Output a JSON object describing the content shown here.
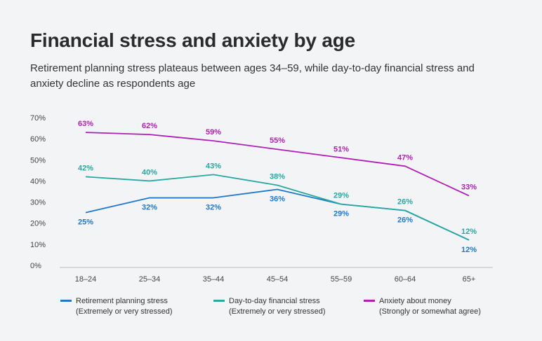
{
  "header": {
    "title": "Financial stress and anxiety by age",
    "subtitle": "Retirement planning stress plateaus between ages 34–59, while day-to-day financial stress and anxiety decline as respondents age"
  },
  "chart_data": {
    "type": "line",
    "categories": [
      "18–24",
      "25–34",
      "35–44",
      "45–54",
      "55–59",
      "60–64",
      "65+"
    ],
    "ylim": [
      0,
      70
    ],
    "yticks": [
      "0%",
      "10%",
      "20%",
      "30%",
      "40%",
      "50%",
      "60%",
      "70%"
    ],
    "grid": false,
    "legend_position": "bottom",
    "series": [
      {
        "name": "Retirement planning stress",
        "note": "(Extremely or very stressed)",
        "color": "#1f78c8",
        "values": [
          25,
          32,
          32,
          36,
          29,
          26,
          12
        ],
        "labels": [
          "25%",
          "32%",
          "32%",
          "36%",
          "29%",
          "26%",
          "12%"
        ]
      },
      {
        "name": "Day-to-day financial stress",
        "note": "(Extremely or very stressed)",
        "color": "#27a8a0",
        "values": [
          42,
          40,
          43,
          38,
          29,
          26,
          12
        ],
        "labels": [
          "42%",
          "40%",
          "43%",
          "38%",
          "29%",
          "26%",
          "12%"
        ]
      },
      {
        "name": "Anxiety about money",
        "note": "(Strongly or somewhat agree)",
        "color": "#b01fb5",
        "values": [
          63,
          62,
          59,
          55,
          51,
          47,
          33
        ],
        "labels": [
          "63%",
          "62%",
          "59%",
          "55%",
          "51%",
          "47%",
          "33%"
        ]
      }
    ]
  }
}
